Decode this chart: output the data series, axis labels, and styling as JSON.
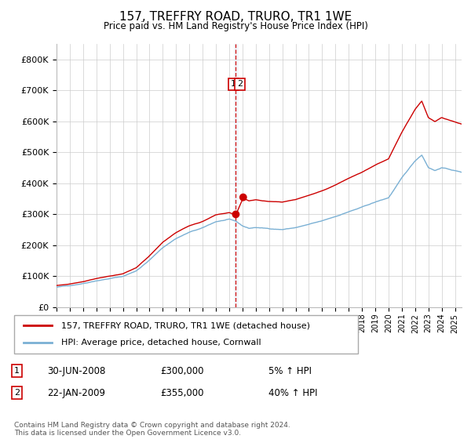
{
  "title": "157, TREFFRY ROAD, TRURO, TR1 1WE",
  "subtitle": "Price paid vs. HM Land Registry's House Price Index (HPI)",
  "hpi_label": "HPI: Average price, detached house, Cornwall",
  "property_label": "157, TREFFRY ROAD, TRURO, TR1 1WE (detached house)",
  "sale1_date": "30-JUN-2008",
  "sale1_price": 300000,
  "sale1_pct": "5%",
  "sale1_x": 2008.5,
  "sale2_date": "22-JAN-2009",
  "sale2_price": 355000,
  "sale2_pct": "40%",
  "sale2_x": 2009.055,
  "ylim": [
    0,
    850000
  ],
  "yticks": [
    0,
    100000,
    200000,
    300000,
    400000,
    500000,
    600000,
    700000,
    800000
  ],
  "xlim_min": 1995,
  "xlim_max": 2025.5,
  "hpi_color": "#7ab0d4",
  "property_color": "#cc0000",
  "dashed_color": "#cc0000",
  "shade_color": "#ddeeff",
  "grid_color": "#cccccc",
  "bg_color": "#ffffff",
  "footnote": "Contains HM Land Registry data © Crown copyright and database right 2024.\nThis data is licensed under the Open Government Licence v3.0."
}
